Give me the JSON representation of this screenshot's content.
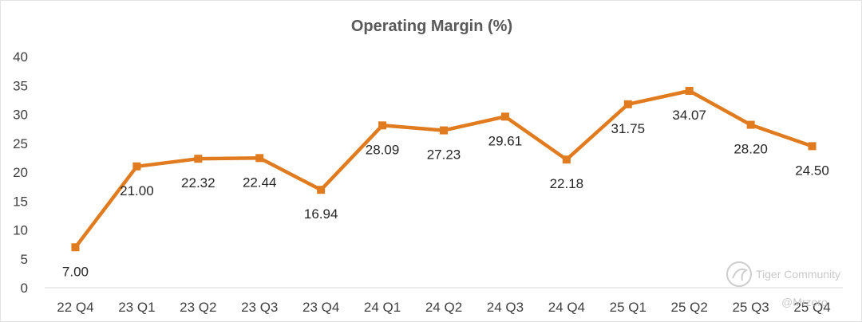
{
  "chart_data": {
    "type": "line",
    "title": "Operating Margin (%)",
    "xlabel": "",
    "ylabel": "",
    "categories": [
      "22 Q4",
      "23 Q1",
      "23 Q2",
      "23 Q3",
      "23 Q4",
      "24 Q1",
      "24 Q2",
      "24 Q3",
      "24 Q4",
      "25 Q1",
      "25 Q2",
      "25 Q3",
      "25 Q4"
    ],
    "series": [
      {
        "name": "Operating Margin (%)",
        "values": [
          7.0,
          21.0,
          22.32,
          22.44,
          16.94,
          28.09,
          27.23,
          29.61,
          22.18,
          31.75,
          34.07,
          28.2,
          24.5
        ],
        "labels": [
          "7.00",
          "21.00",
          "22.32",
          "22.44",
          "16.94",
          "28.09",
          "27.23",
          "29.61",
          "22.18",
          "31.75",
          "34.07",
          "28.20",
          "24.50"
        ]
      }
    ],
    "ylim": [
      0,
      40
    ],
    "yticks": [
      "0",
      "5",
      "10",
      "15",
      "20",
      "25",
      "30",
      "35",
      "40"
    ],
    "grid": false,
    "line_color": "#e07b1f",
    "legend": "none"
  },
  "watermark": {
    "brand": "Tiger Community",
    "user": "@Mrzoro"
  }
}
